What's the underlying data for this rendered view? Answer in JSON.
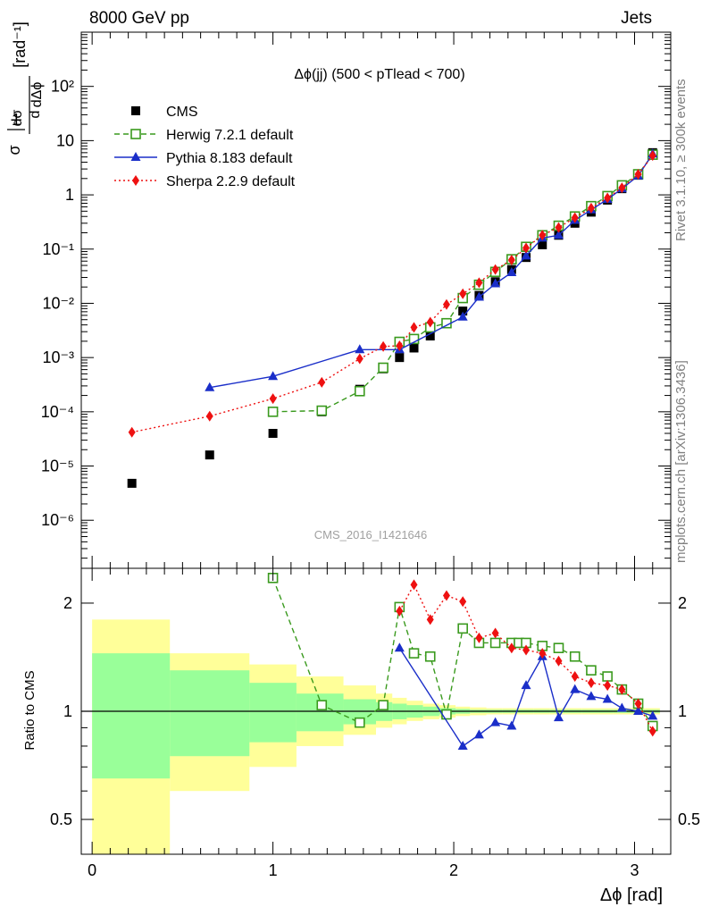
{
  "header": {
    "left_label": "8000 GeV pp",
    "right_label": "Jets",
    "side_label_top": "Rivet 3.1.10, ≥ 300k events",
    "side_label_bottom": "mcplots.cern.ch [arXiv:1306.3436]",
    "watermark": "CMS_2016_I1421646"
  },
  "chart_data": [
    {
      "type": "line",
      "panel": "main",
      "title": "Δϕ(jj) (500 < pTlead <  700)",
      "ylabel": "1/σ dσ/dΔϕ [rad⁻¹]",
      "yscale": "log",
      "xlim": [
        -0.06,
        3.2
      ],
      "ylim": [
        1.3e-07,
        1000
      ],
      "ytick_labels": [
        "10⁻⁶",
        "10⁻⁵",
        "10⁻⁴",
        "10⁻³",
        "10⁻²",
        "10⁻¹",
        "1",
        "10",
        "10²"
      ],
      "legend_position": "top-left",
      "series": [
        {
          "name": "CMS",
          "style": "black-square-marker",
          "color": "#000000",
          "x": [
            0.22,
            0.65,
            1.0,
            1.27,
            1.48,
            1.61,
            1.7,
            1.78,
            1.87,
            1.96,
            2.05,
            2.14,
            2.23,
            2.32,
            2.4,
            2.49,
            2.58,
            2.67,
            2.76,
            2.85,
            2.93,
            3.02,
            3.1
          ],
          "values": [
            4.8e-06,
            1.6e-05,
            4e-05,
            0.0001,
            0.00026,
            0.00062,
            0.001,
            0.0015,
            0.0025,
            0.0043,
            0.0072,
            0.014,
            0.025,
            0.042,
            0.07,
            0.12,
            0.18,
            0.3,
            0.48,
            0.8,
            1.3,
            2.3,
            6.0
          ]
        },
        {
          "name": "Herwig 7.2.1 default",
          "style": "dashed-open-square",
          "color": "#3a9a1e",
          "x": [
            1.0,
            1.27,
            1.48,
            1.61,
            1.7,
            1.78,
            1.87,
            1.96,
            2.05,
            2.14,
            2.23,
            2.32,
            2.4,
            2.49,
            2.58,
            2.67,
            2.76,
            2.85,
            2.93,
            3.02,
            3.1
          ],
          "values": [
            0.0001,
            0.000105,
            0.00024,
            0.00065,
            0.00195,
            0.0022,
            0.0036,
            0.0043,
            0.0125,
            0.022,
            0.038,
            0.065,
            0.11,
            0.18,
            0.27,
            0.4,
            0.62,
            0.95,
            1.5,
            2.4,
            5.5
          ]
        },
        {
          "name": "Pythia 8.183 default",
          "style": "solid-triangle",
          "color": "#1a2ec9",
          "x": [
            0.65,
            1.0,
            1.48,
            1.7,
            2.05,
            2.14,
            2.23,
            2.32,
            2.4,
            2.49,
            2.58,
            2.67,
            2.76,
            2.85,
            2.93,
            3.02,
            3.1
          ],
          "values": [
            0.00028,
            0.00045,
            0.0014,
            0.0014,
            0.0056,
            0.013,
            0.023,
            0.037,
            0.075,
            0.16,
            0.18,
            0.34,
            0.53,
            0.83,
            1.3,
            2.25,
            5.7
          ]
        },
        {
          "name": "Sherpa 2.2.9 default",
          "style": "dotted-diamond",
          "color": "#ee1111",
          "x": [
            0.22,
            0.65,
            1.0,
            1.27,
            1.48,
            1.61,
            1.7,
            1.78,
            1.87,
            1.96,
            2.05,
            2.14,
            2.23,
            2.32,
            2.4,
            2.49,
            2.58,
            2.67,
            2.76,
            2.85,
            2.93,
            3.02,
            3.1
          ],
          "values": [
            4.2e-05,
            8.3e-05,
            0.000175,
            0.00035,
            0.00095,
            0.0016,
            0.00165,
            0.0036,
            0.0045,
            0.0095,
            0.015,
            0.024,
            0.042,
            0.063,
            0.105,
            0.18,
            0.25,
            0.38,
            0.57,
            0.88,
            1.35,
            2.4,
            5.3
          ]
        }
      ]
    },
    {
      "type": "line",
      "panel": "ratio",
      "ylabel": "Ratio to CMS",
      "xlabel": "Δϕ [rad]",
      "yscale": "log",
      "xlim": [
        -0.06,
        3.2
      ],
      "ylim": [
        0.4,
        2.5
      ],
      "reference_value": 1.0,
      "ytick_labels": [
        "0.5",
        "1",
        "2"
      ],
      "xtick_labels": [
        "0",
        "1",
        "2",
        "3"
      ],
      "uncertainty_bands": {
        "bin_edges": [
          0.0,
          0.43,
          0.87,
          1.13,
          1.39,
          1.57,
          1.66,
          1.74,
          1.83,
          1.92,
          2.01,
          2.09,
          2.18,
          2.27,
          2.36,
          2.44,
          2.53,
          2.62,
          2.71,
          2.8,
          2.88,
          2.97,
          3.06,
          3.14
        ],
        "inner_low": [
          0.65,
          0.75,
          0.82,
          0.88,
          0.92,
          0.94,
          0.95,
          0.96,
          0.97,
          0.98,
          0.985,
          0.99,
          0.99,
          0.99,
          0.99,
          0.99,
          0.99,
          0.99,
          0.99,
          0.99,
          0.99,
          0.99,
          0.99
        ],
        "inner_high": [
          1.45,
          1.3,
          1.2,
          1.12,
          1.08,
          1.06,
          1.05,
          1.04,
          1.03,
          1.02,
          1.015,
          1.01,
          1.01,
          1.01,
          1.01,
          1.01,
          1.01,
          1.01,
          1.01,
          1.01,
          1.01,
          1.01,
          1.01
        ],
        "outer_low": [
          0.4,
          0.6,
          0.7,
          0.8,
          0.86,
          0.9,
          0.92,
          0.94,
          0.95,
          0.96,
          0.97,
          0.975,
          0.98,
          0.98,
          0.98,
          0.98,
          0.98,
          0.98,
          0.98,
          0.98,
          0.98,
          0.98,
          0.98
        ],
        "outer_high": [
          1.8,
          1.45,
          1.35,
          1.25,
          1.18,
          1.12,
          1.09,
          1.07,
          1.05,
          1.04,
          1.03,
          1.025,
          1.02,
          1.02,
          1.02,
          1.02,
          1.02,
          1.02,
          1.02,
          1.02,
          1.02,
          1.02,
          1.02
        ]
      },
      "series": [
        {
          "name": "Herwig 7.2.1 default",
          "color": "#3a9a1e",
          "x": [
            1.0,
            1.27,
            1.48,
            1.61,
            1.7,
            1.78,
            1.87,
            1.96,
            2.05,
            2.14,
            2.23,
            2.32,
            2.36,
            2.4,
            2.49,
            2.58,
            2.67,
            2.76,
            2.85,
            2.93,
            3.02,
            3.1
          ],
          "values": [
            2.35,
            1.04,
            0.93,
            1.04,
            1.95,
            1.45,
            1.42,
            0.98,
            1.7,
            1.55,
            1.55,
            1.55,
            1.55,
            1.55,
            1.52,
            1.5,
            1.42,
            1.3,
            1.25,
            1.15,
            1.05,
            0.91
          ]
        },
        {
          "name": "Pythia 8.183 default",
          "color": "#1a2ec9",
          "x": [
            1.7,
            2.05,
            2.14,
            2.23,
            2.32,
            2.4,
            2.49,
            2.58,
            2.67,
            2.76,
            2.85,
            2.93,
            3.02,
            3.1
          ],
          "values": [
            1.5,
            0.8,
            0.86,
            0.93,
            0.91,
            1.18,
            1.42,
            0.96,
            1.15,
            1.1,
            1.08,
            1.02,
            1.0,
            0.97
          ]
        },
        {
          "name": "Sherpa 2.2.9 default",
          "color": "#ee1111",
          "x": [
            1.7,
            1.78,
            1.87,
            1.96,
            2.05,
            2.14,
            2.23,
            2.32,
            2.4,
            2.49,
            2.58,
            2.67,
            2.76,
            2.85,
            2.93,
            3.02,
            3.1
          ],
          "values": [
            1.9,
            2.25,
            1.8,
            2.1,
            2.02,
            1.6,
            1.65,
            1.5,
            1.48,
            1.45,
            1.38,
            1.25,
            1.2,
            1.18,
            1.15,
            1.05,
            0.88
          ]
        }
      ]
    }
  ]
}
